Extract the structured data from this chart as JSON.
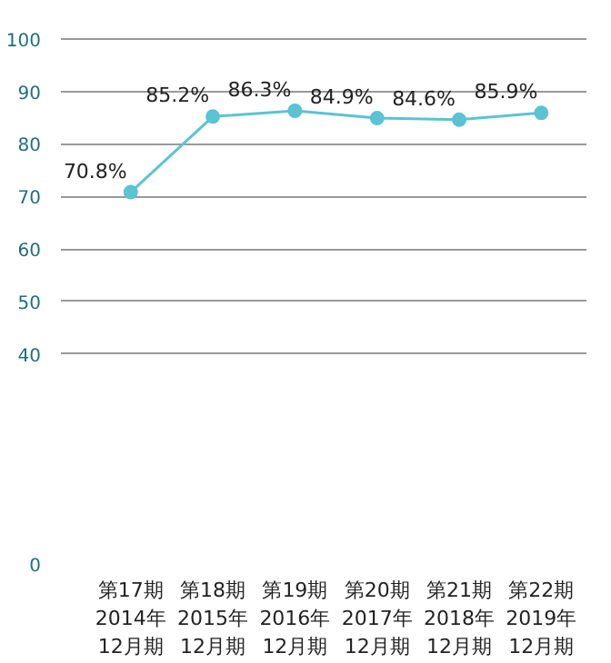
{
  "chart_data": {
    "type": "line",
    "categories": [
      "第17期\n2014年\n12月期",
      "第18期\n2015年\n12月期",
      "第19期\n2016年\n12月期",
      "第20期\n2017年\n12月期",
      "第21期\n2018年\n12月期",
      "第22期\n2019年\n12月期"
    ],
    "series": [
      {
        "color": "#5bc3d3",
        "values": [
          70.8,
          85.2,
          86.3,
          84.9,
          84.6,
          85.9
        ]
      }
    ],
    "value_labels": [
      "70.8%",
      "85.2%",
      "86.3%",
      "84.9%",
      "84.6%",
      "85.9%"
    ],
    "ylim": [
      0,
      101
    ],
    "yticks": [
      0,
      40,
      50,
      60,
      70,
      80,
      90,
      100
    ],
    "grid": "y",
    "marker": "circle",
    "line_style": "solid"
  }
}
